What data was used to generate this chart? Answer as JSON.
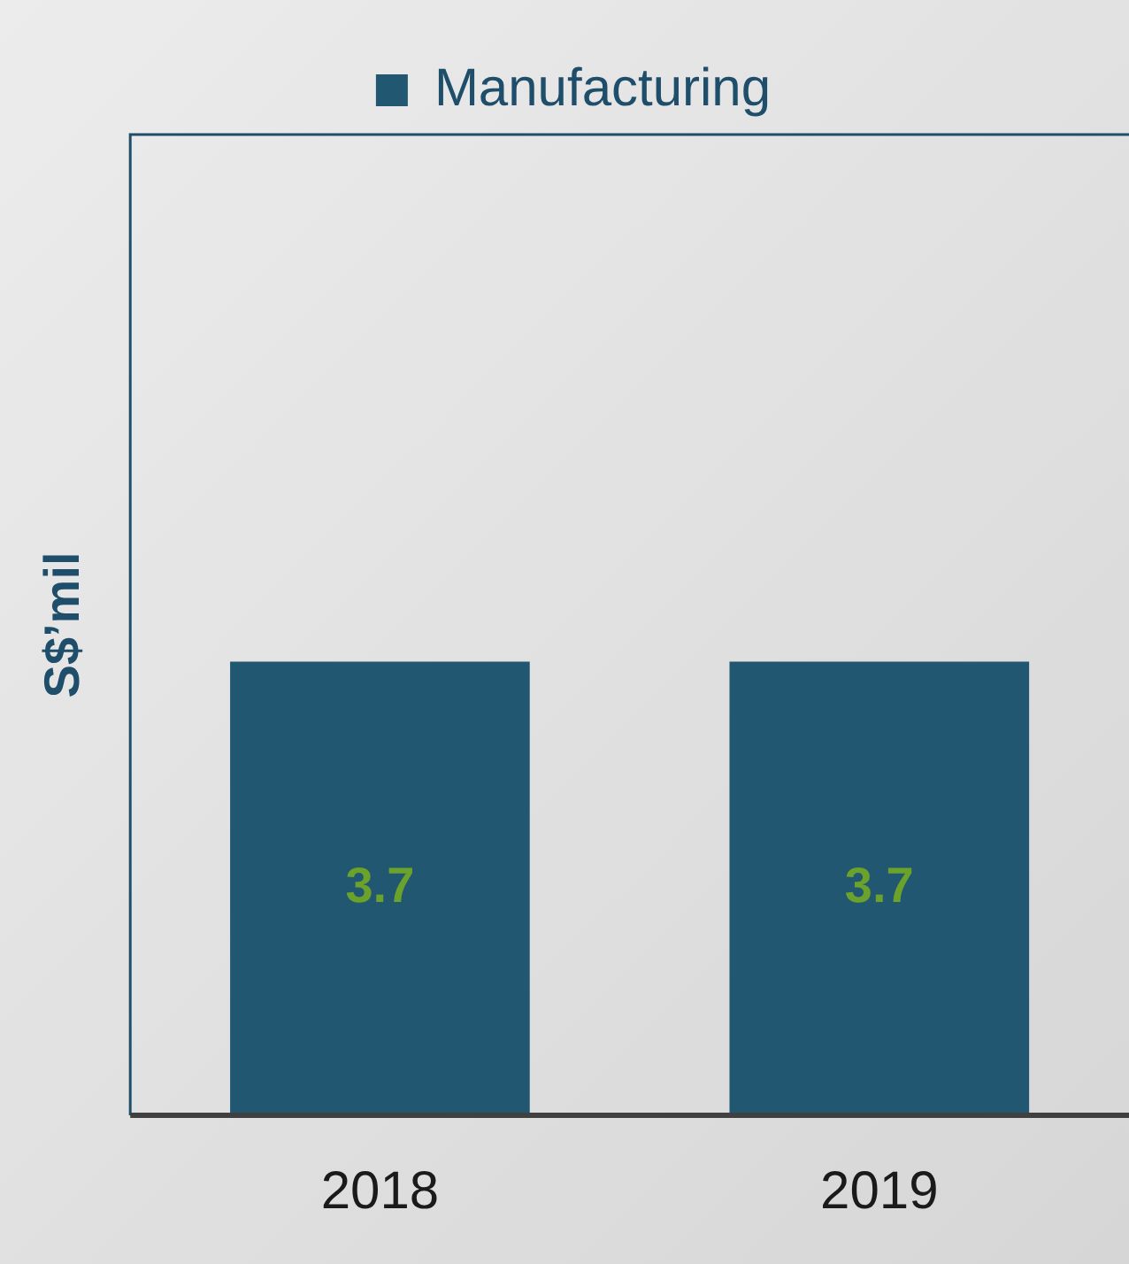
{
  "chart_data": {
    "type": "bar",
    "ylabel": "S$’mil",
    "categories": [
      "2018",
      "2019"
    ],
    "series": [
      {
        "name": "Manufacturing",
        "color": "#215770",
        "values": [
          3.7,
          3.7
        ]
      }
    ],
    "ylim": [
      0,
      8
    ],
    "tick_labels": "x",
    "grid": false,
    "legend": "top",
    "data_labels": true
  }
}
